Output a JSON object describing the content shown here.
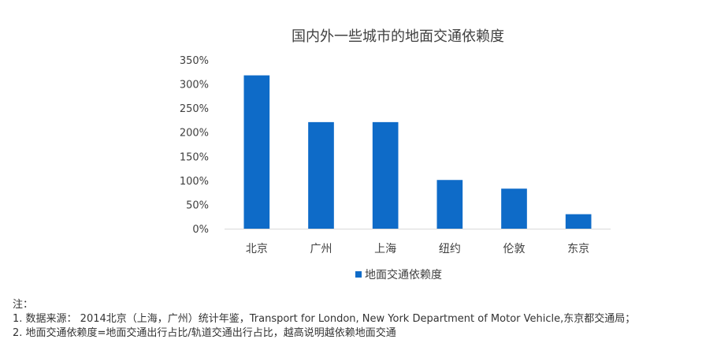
{
  "chart_data": {
    "type": "bar",
    "title": "国内外一些城市的地面交通依赖度",
    "categories": [
      "北京",
      "广州",
      "上海",
      "纽约",
      "伦敦",
      "东京"
    ],
    "series": [
      {
        "name": "地面交通依赖度",
        "values": [
          318,
          221,
          221,
          101,
          83,
          30
        ],
        "color": "#0E6BC8"
      }
    ],
    "yticks": [
      "0%",
      "50%",
      "100%",
      "150%",
      "200%",
      "250%",
      "300%",
      "350%"
    ],
    "ylim": [
      0,
      350
    ],
    "ytick_step": 50,
    "unit": "%",
    "grid": false,
    "legend": "bottom-center"
  },
  "notes": {
    "heading": "注：",
    "line1": "1.  数据来源：  2014北京（上海，广州）统计年鉴，Transport for London, New York Department of Motor Vehicle,东京都交通局；",
    "line2": "2.  地面交通依赖度=地面交通出行占比/轨道交通出行占比，越高说明越依赖地面交通"
  }
}
